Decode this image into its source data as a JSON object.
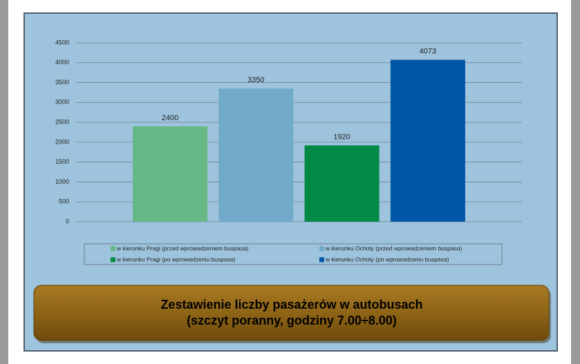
{
  "chart_data": {
    "type": "bar",
    "title": "Zestawienie liczby pasażerów w autobusach",
    "subtitle": "(szczyt poranny, godziny 7.00÷8.00)",
    "series": [
      {
        "name": "w kierunku Pragi (przed wprowadzeniem buspasa)",
        "color": "#66b886",
        "values": [
          2400
        ]
      },
      {
        "name": "w kierunku Ochoty (przed wprowadzeniem buspasa)",
        "color": "#70a9c9",
        "values": [
          3350
        ]
      },
      {
        "name": "w kierunku Pragi (po wprowadzeniu buspasa)",
        "color": "#008a45",
        "values": [
          1920
        ]
      },
      {
        "name": "w kierunku Ochoty (po wprowadzeniu buspasa)",
        "color": "#0055a5",
        "values": [
          4073
        ]
      }
    ],
    "ylim": [
      0,
      4500
    ],
    "yticks": [
      0,
      500,
      1000,
      1500,
      2000,
      2500,
      3000,
      3500,
      4000,
      4500
    ],
    "grid": true
  }
}
